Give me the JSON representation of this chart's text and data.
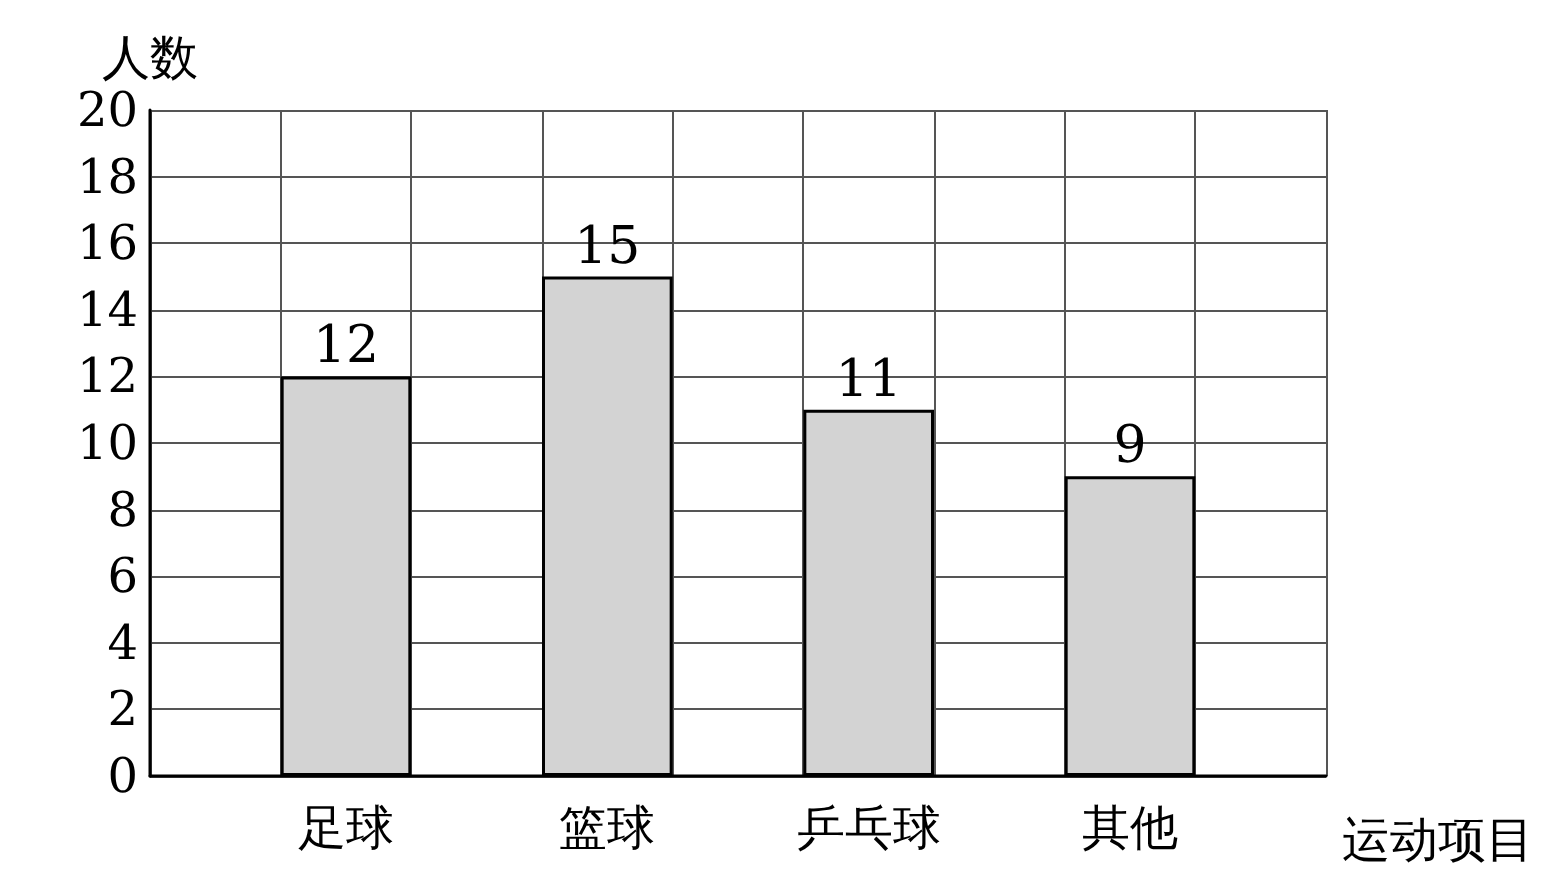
{
  "chart_data": {
    "type": "bar",
    "ylabel": "人数",
    "xlabel": "运动项目",
    "categories": [
      null,
      "足球",
      null,
      "篮球",
      null,
      "乒乓球",
      null,
      "其他",
      null
    ],
    "values": [
      null,
      12,
      null,
      15,
      null,
      11,
      null,
      9,
      null
    ],
    "color": "#d3d3d3",
    "ylim": [
      0,
      20
    ],
    "yticks": [
      0,
      2,
      4,
      6,
      8,
      10,
      12,
      14,
      16,
      18,
      20
    ],
    "grid": true,
    "data_labels": true
  }
}
